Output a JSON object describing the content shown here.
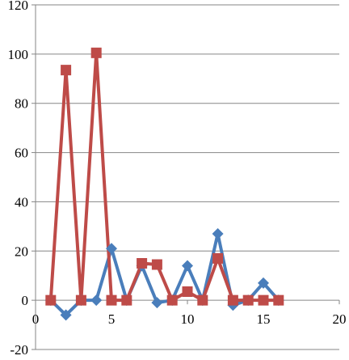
{
  "chart_data": {
    "type": "line",
    "title": "",
    "xlabel": "",
    "ylabel": "",
    "xlim": [
      0,
      20
    ],
    "ylim": [
      -20,
      120
    ],
    "x_ticks": [
      0,
      5,
      10,
      15,
      20
    ],
    "y_ticks": [
      -20,
      0,
      20,
      40,
      60,
      80,
      100,
      120
    ],
    "x_tick_labels": [
      "0",
      "5",
      "10",
      "15",
      "20"
    ],
    "y_tick_labels": [
      "-20",
      "0",
      "20",
      "40",
      "60",
      "80",
      "100",
      "120"
    ],
    "grid": "horizontal",
    "legend": "none",
    "series": [
      {
        "color": "#4a7ebb",
        "marker": "diamond",
        "x": [
          1,
          2,
          3,
          4,
          5,
          6,
          7,
          8,
          9,
          10,
          11,
          12,
          13,
          14,
          15,
          16
        ],
        "y": [
          0,
          -6,
          0,
          0,
          21,
          0,
          14,
          -1,
          0,
          14,
          0,
          27,
          -2,
          0,
          7,
          0
        ]
      },
      {
        "color": "#be4b48",
        "marker": "square",
        "x": [
          1,
          2,
          3,
          4,
          5,
          6,
          7,
          8,
          9,
          10,
          11,
          12,
          13,
          14,
          15,
          16
        ],
        "y": [
          0,
          93.5,
          0,
          100.5,
          0,
          0,
          15,
          14.5,
          0,
          3.5,
          0,
          17,
          0,
          0,
          0,
          0
        ]
      }
    ]
  }
}
